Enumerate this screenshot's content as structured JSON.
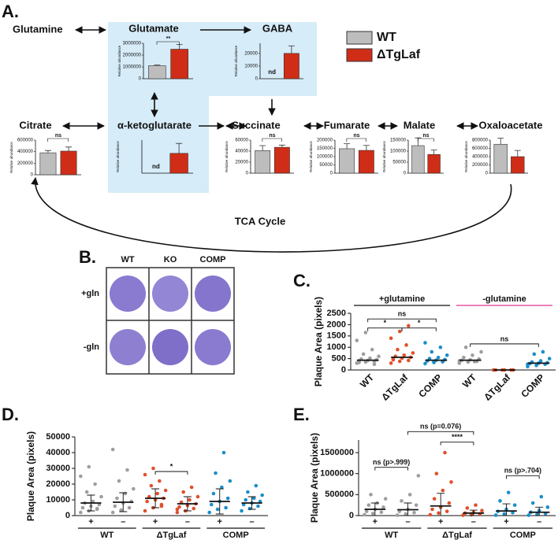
{
  "panel_a": {
    "letter": "A.",
    "nodes": {
      "glutamine": "Glutamine",
      "cycle": "TCA Cycle"
    },
    "legend": [
      {
        "name": "WT",
        "color": "#bdbdbd"
      },
      {
        "name": "ΔTgLaf",
        "color": "#cf2d17"
      }
    ],
    "charts": [
      {
        "title": "Glutamate",
        "ylabel": "Relative abundance",
        "ylim": [
          0,
          3000000
        ],
        "yticks": [
          0,
          1000000,
          2000000,
          3000000
        ],
        "values": [
          1100000,
          2500000
        ],
        "errors": [
          60000,
          400000
        ],
        "sig": "**"
      },
      {
        "title": "GABA",
        "ylabel": "Relative abundance",
        "ylim": [
          0,
          28000
        ],
        "yticks": [
          0,
          10000,
          20000
        ],
        "values": [
          null,
          20000
        ],
        "value_labels": [
          "nd",
          null
        ],
        "errors": [
          null,
          6000
        ]
      },
      {
        "title": "Citrate",
        "ylabel": "Relative abundance",
        "ylim": [
          0,
          600000
        ],
        "yticks": [
          0,
          200000,
          400000,
          600000
        ],
        "values": [
          380000,
          410000
        ],
        "errors": [
          40000,
          70000
        ],
        "sig": "ns"
      },
      {
        "title": "α-ketoglutarate",
        "ylabel": "Relative abundance",
        "ylim": [
          0,
          1
        ],
        "values": [
          null,
          0.6
        ],
        "value_labels": [
          "nd",
          null
        ],
        "errors": [
          null,
          0.3
        ]
      },
      {
        "title": "Succinate",
        "ylabel": "Relative abundance",
        "ylim": [
          0,
          60000
        ],
        "yticks": [
          0,
          20000,
          40000,
          60000
        ],
        "values": [
          41000,
          47000
        ],
        "errors": [
          9000,
          4000
        ],
        "sig": "ns"
      },
      {
        "title": "Fumarate",
        "ylabel": "Relative abundance",
        "ylim": [
          0,
          200000
        ],
        "yticks": [
          0,
          50000,
          100000,
          150000,
          200000
        ],
        "values": [
          148000,
          138000
        ],
        "errors": [
          30000,
          30000
        ],
        "sig": "ns"
      },
      {
        "title": "Malate",
        "ylabel": "Relative abundance",
        "ylim": [
          0,
          150000
        ],
        "yticks": [
          0,
          50000,
          100000,
          150000
        ],
        "values": [
          125000,
          85000
        ],
        "errors": [
          35000,
          20000
        ],
        "sig": "ns"
      },
      {
        "title": "Oxaloacetate",
        "ylabel": "Relative abundance",
        "ylim": [
          0,
          800000
        ],
        "yticks": [
          0,
          200000,
          400000,
          600000,
          800000
        ],
        "values": [
          700000,
          400000
        ],
        "errors": [
          150000,
          150000
        ]
      }
    ]
  },
  "panel_b": {
    "letter": "B.",
    "columns": [
      "WT",
      "KO",
      "COMP"
    ],
    "rows": [
      "+gln",
      "-gln"
    ]
  },
  "panel_c": {
    "letter": "C.",
    "ylabel": "Plaque Area (pixels)",
    "ylim": [
      0,
      2500
    ],
    "yticks": [
      0,
      500,
      1000,
      1500,
      2000,
      2500
    ],
    "categories": [
      "WT",
      "ΔTgLaf",
      "COMP",
      "WT",
      "ΔTgLaf",
      "COMP"
    ],
    "group_labels": [
      "+glutamine",
      "-glutamine"
    ],
    "group_colors": [
      "#111111",
      "#e0358f"
    ],
    "groups": [
      {
        "color": "#9e9e9e",
        "points": [
          300,
          350,
          380,
          400,
          420,
          450,
          480,
          520,
          600,
          700,
          900,
          1300,
          1650,
          250,
          330
        ]
      },
      {
        "color": "#e0502a",
        "points": [
          300,
          380,
          420,
          480,
          520,
          560,
          600,
          650,
          750,
          900,
          1100,
          1400,
          1700,
          1950,
          450
        ]
      },
      {
        "color": "#1a8fc9",
        "points": [
          280,
          330,
          360,
          400,
          430,
          460,
          500,
          550,
          650,
          800,
          1000,
          1200,
          350,
          380
        ]
      },
      {
        "color": "#9e9e9e",
        "points": [
          300,
          350,
          380,
          420,
          450,
          480,
          550,
          650,
          800,
          1000,
          370,
          400
        ]
      },
      {
        "color": "#e0502a",
        "points": [
          0,
          0,
          0,
          0,
          0,
          0
        ]
      },
      {
        "color": "#1a8fc9",
        "points": [
          150,
          200,
          250,
          280,
          300,
          320,
          350,
          400,
          500,
          700,
          800,
          250
        ]
      }
    ],
    "means": [
      430,
      560,
      430,
      430,
      0,
      300
    ],
    "brackets": [
      "ns",
      "*",
      "*",
      "ns"
    ]
  },
  "panel_d": {
    "letter": "D.",
    "ylabel": "Plaque Area (pixels)",
    "ylim": [
      0,
      50000
    ],
    "yticks": [
      0,
      10000,
      20000,
      30000,
      40000,
      50000
    ],
    "categories": [
      "+",
      "–",
      "+",
      "–",
      "+",
      "–"
    ],
    "group_labels": [
      "WT",
      "ΔTgLaf",
      "COMP"
    ],
    "groups": [
      {
        "color": "#9e9e9e",
        "points": [
          2000,
          3000,
          4000,
          5000,
          6000,
          7000,
          8000,
          9000,
          12000,
          15000,
          20000,
          25000,
          31000,
          4500
        ]
      },
      {
        "color": "#9e9e9e",
        "points": [
          2000,
          3500,
          5000,
          6000,
          8000,
          9000,
          11000,
          14000,
          17000,
          22000,
          29000,
          42000
        ]
      },
      {
        "color": "#e0502a",
        "points": [
          3000,
          5000,
          7000,
          9000,
          10000,
          11000,
          12000,
          14000,
          16000,
          19000,
          22000,
          26000,
          30000,
          6000
        ]
      },
      {
        "color": "#e0502a",
        "points": [
          2000,
          3000,
          4500,
          5500,
          6500,
          7500,
          8500,
          10000,
          12000,
          15000,
          18000,
          4000
        ]
      },
      {
        "color": "#1a8fc9",
        "points": [
          2000,
          4000,
          5000,
          7000,
          9000,
          11000,
          14000,
          18000,
          22000,
          27000,
          40000
        ]
      },
      {
        "color": "#1a8fc9",
        "points": [
          3000,
          4500,
          6000,
          7000,
          8000,
          9000,
          10000,
          11000,
          13000,
          15000,
          19000
        ]
      }
    ],
    "means": [
      8000,
      8500,
      11000,
      7500,
      9000,
      8000
    ],
    "sd": [
      5000,
      6000,
      6000,
      4500,
      8000,
      4000
    ],
    "brackets": [
      "*"
    ]
  },
  "panel_e": {
    "letter": "E.",
    "ylabel": "Plaque Area (pixels)",
    "ylim": [
      0,
      1800000
    ],
    "yticks": [
      0,
      500000,
      1000000,
      1500000
    ],
    "categories": [
      "+",
      "–",
      "+",
      "–",
      "+",
      "–"
    ],
    "group_labels": [
      "WT",
      "ΔTgLaf",
      "COMP"
    ],
    "groups": [
      {
        "color": "#9e9e9e",
        "points": [
          20000,
          50000,
          80000,
          100000,
          150000,
          200000,
          250000,
          300000,
          400000,
          500000
        ]
      },
      {
        "color": "#9e9e9e",
        "points": [
          10000,
          40000,
          70000,
          100000,
          150000,
          250000,
          350000,
          500000,
          950000
        ]
      },
      {
        "color": "#e0502a",
        "points": [
          20000,
          60000,
          100000,
          150000,
          200000,
          300000,
          400000,
          600000,
          800000,
          1000000,
          1500000
        ]
      },
      {
        "color": "#e0502a",
        "points": [
          10000,
          20000,
          40000,
          60000,
          80000,
          120000,
          180000,
          250000
        ]
      },
      {
        "color": "#1a8fc9",
        "points": [
          10000,
          40000,
          70000,
          100000,
          150000,
          250000,
          350000,
          550000
        ]
      },
      {
        "color": "#1a8fc9",
        "points": [
          10000,
          30000,
          50000,
          80000,
          120000,
          200000,
          300000,
          450000
        ]
      }
    ],
    "means": [
      150000,
      140000,
      230000,
      60000,
      110000,
      80000
    ],
    "sd": [
      150000,
      160000,
      300000,
      70000,
      170000,
      120000
    ],
    "brackets": [
      "ns (p>.999)",
      "ns (p=0.076)",
      "****",
      "ns (p>.704)"
    ]
  }
}
